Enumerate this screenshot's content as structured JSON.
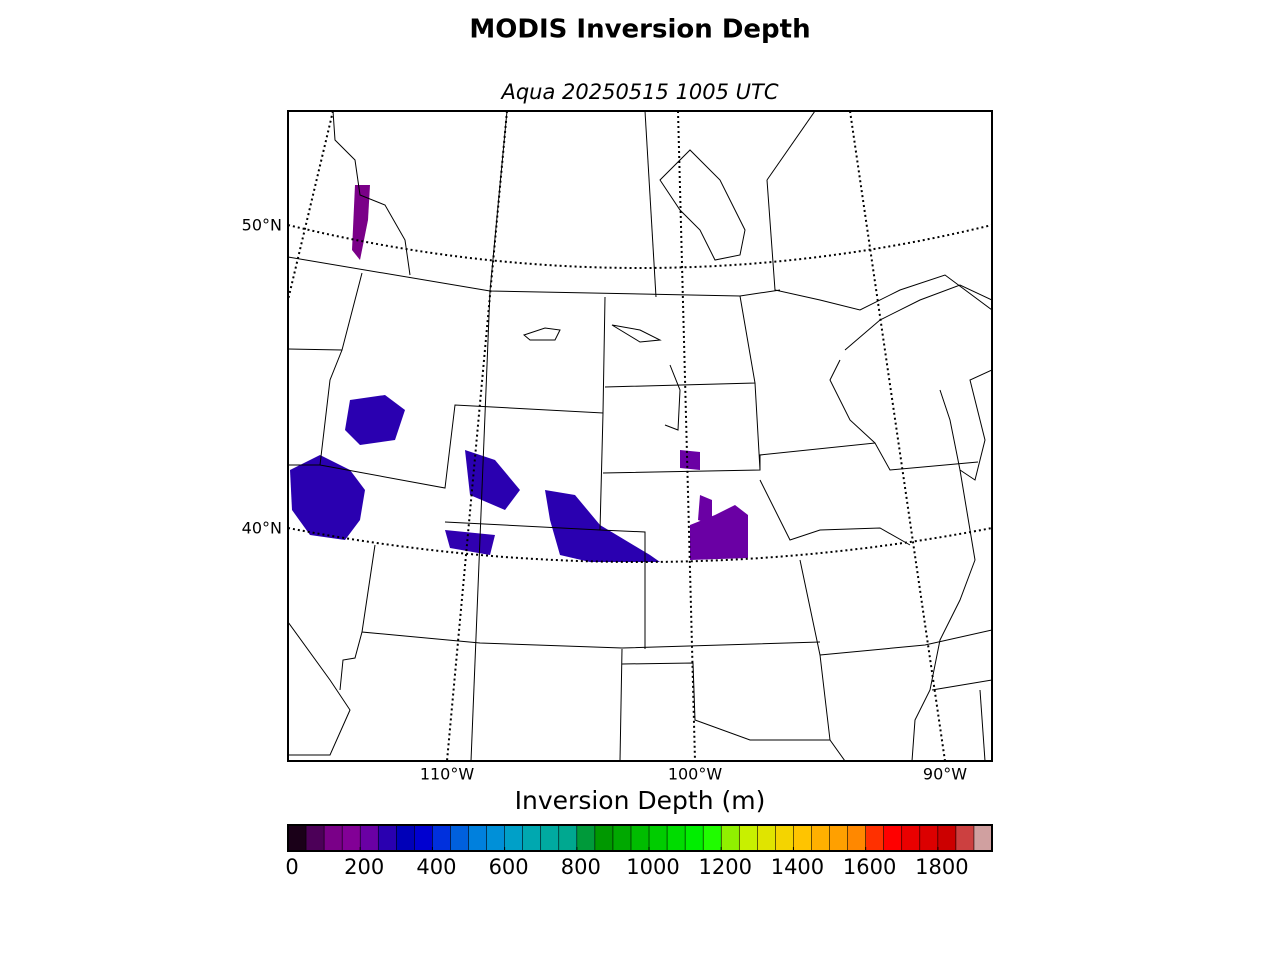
{
  "chart_data": {
    "type": "map",
    "title": "MODIS Inversion Depth",
    "subtitle": "Aqua 20250515 1005 UTC",
    "lat_labels": [
      "50°N",
      "40°N"
    ],
    "lon_labels": [
      "110°W",
      "100°W",
      "90°W"
    ],
    "colorbar": {
      "label": "Inversion Depth (m)",
      "lim": [
        0,
        1950
      ],
      "ticks": [
        0,
        200,
        400,
        600,
        800,
        1000,
        1200,
        1400,
        1600,
        1800
      ],
      "colors": [
        "#1a0018",
        "#4c0058",
        "#7a0088",
        "#820096",
        "#6a00a4",
        "#2a00b0",
        "#0000b8",
        "#0000d0",
        "#0030dd",
        "#0060dd",
        "#0080dd",
        "#0090d8",
        "#00a0c8",
        "#00a8b0",
        "#00aaa0",
        "#00a890",
        "#009a3a",
        "#009800",
        "#00a800",
        "#00bc00",
        "#00cc00",
        "#00dc00",
        "#00ee00",
        "#20fc00",
        "#90f000",
        "#c8f000",
        "#e0e400",
        "#f4d400",
        "#ffc400",
        "#ffb000",
        "#ffa000",
        "#ff8800",
        "#ff3000",
        "#ff0000",
        "#ea0000",
        "#dc0000",
        "#cc0000",
        "#cc4040",
        "#d0a0a0"
      ]
    }
  }
}
